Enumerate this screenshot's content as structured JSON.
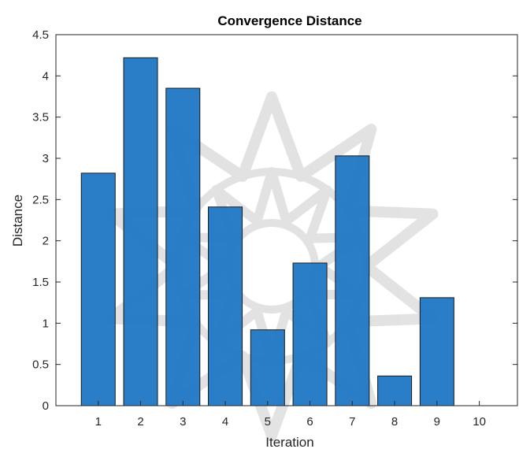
{
  "chart_data": {
    "type": "bar",
    "title": "Convergence Distance",
    "xlabel": "Iteration",
    "ylabel": "Distance",
    "categories": [
      "1",
      "2",
      "3",
      "4",
      "5",
      "6",
      "7",
      "8",
      "9",
      "10"
    ],
    "values": [
      2.82,
      4.22,
      3.85,
      2.41,
      0.92,
      1.73,
      3.03,
      0.36,
      1.31,
      0
    ],
    "xlim": [
      0,
      10.9
    ],
    "ylim": [
      0,
      4.5
    ],
    "yticks": [
      "0",
      "0.5",
      "1",
      "1.5",
      "2",
      "2.5",
      "3",
      "3.5",
      "4",
      "4.5"
    ],
    "xticks": [
      "1",
      "2",
      "3",
      "4",
      "5",
      "6",
      "7",
      "8",
      "9",
      "10"
    ],
    "bar_color": "#1f77c4",
    "grid": false,
    "box": true
  }
}
